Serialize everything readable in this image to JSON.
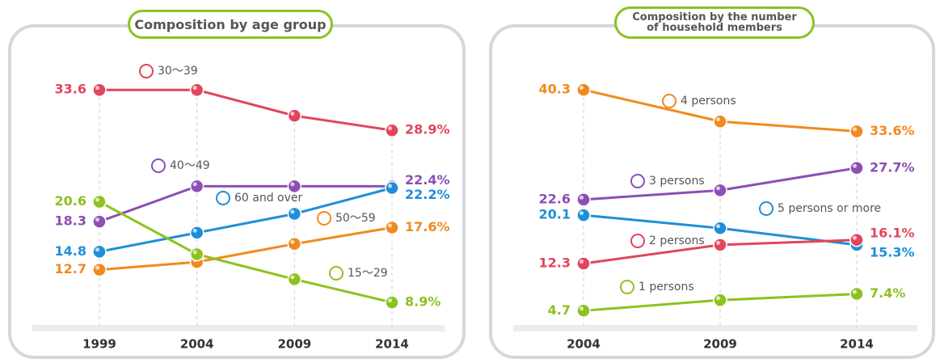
{
  "chart_data": [
    {
      "type": "line",
      "title": "Composition by age group",
      "categories": [
        "1999",
        "2004",
        "2009",
        "2014"
      ],
      "ylim": [
        6,
        37
      ],
      "series": [
        {
          "name": "30～39",
          "color": "#e2455c",
          "values": [
            33.6,
            33.6,
            30.6,
            28.9
          ],
          "value_labels": [
            "33.6",
            null,
            null,
            "28.9%"
          ]
        },
        {
          "name": "40～49",
          "color": "#8b4fb6",
          "values": [
            18.3,
            22.4,
            22.4,
            22.4
          ],
          "value_labels": [
            "18.3",
            null,
            null,
            "22.4%"
          ]
        },
        {
          "name": "60 and over",
          "color": "#1e8fd6",
          "values": [
            14.8,
            17.0,
            19.2,
            22.2
          ],
          "value_labels": [
            "14.8",
            null,
            null,
            "22.2%"
          ]
        },
        {
          "name": "50～59",
          "color": "#f08a1e",
          "values": [
            12.7,
            13.6,
            15.7,
            17.6
          ],
          "value_labels": [
            "12.7",
            null,
            null,
            "17.6%"
          ]
        },
        {
          "name": "15～29",
          "color": "#8cc21f",
          "values": [
            20.6,
            14.5,
            11.6,
            8.9
          ],
          "value_labels": [
            "20.6",
            null,
            null,
            "8.9%"
          ]
        }
      ]
    },
    {
      "type": "line",
      "title": "Composition by the number of household members",
      "categories": [
        "2004",
        "2009",
        "2014"
      ],
      "ylim": [
        2,
        45
      ],
      "series": [
        {
          "name": "4 persons",
          "color": "#f08a1e",
          "values": [
            40.3,
            35.2,
            33.6
          ],
          "value_labels": [
            "40.3",
            null,
            "33.6%"
          ]
        },
        {
          "name": "3 persons",
          "color": "#8b4fb6",
          "values": [
            22.6,
            24.1,
            27.7
          ],
          "value_labels": [
            "22.6",
            null,
            "27.7%"
          ]
        },
        {
          "name": "5 persons or more",
          "color": "#1e8fd6",
          "values": [
            20.1,
            18.0,
            15.3
          ],
          "value_labels": [
            "20.1",
            null,
            "15.3%"
          ]
        },
        {
          "name": "2 persons",
          "color": "#e2455c",
          "values": [
            12.3,
            15.3,
            16.1
          ],
          "value_labels": [
            "12.3",
            null,
            "16.1%"
          ]
        },
        {
          "name": "1 persons",
          "color": "#8cc21f",
          "values": [
            4.7,
            6.4,
            7.4
          ],
          "value_labels": [
            "4.7",
            null,
            "7.4%"
          ]
        }
      ]
    }
  ]
}
